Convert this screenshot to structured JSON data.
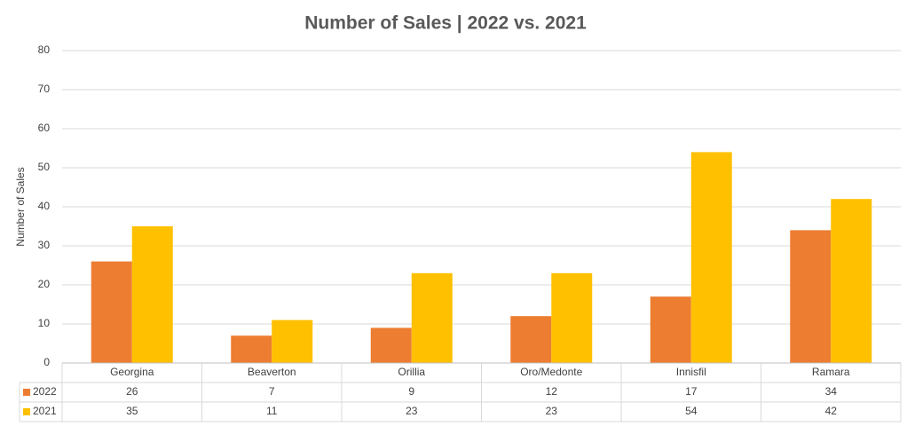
{
  "chart_data": {
    "type": "bar",
    "title": "Number of Sales | 2022 vs. 2021",
    "y_label": "Number of Sales",
    "categories": [
      "Georgina",
      "Beaverton",
      "Orillia",
      "Oro/Medonte",
      "Innisfil",
      "Ramara"
    ],
    "series": [
      {
        "name": "2022",
        "color": "#ed7d31",
        "values": [
          26,
          7,
          9,
          12,
          17,
          34
        ]
      },
      {
        "name": "2021",
        "color": "#ffc000",
        "values": [
          35,
          11,
          23,
          23,
          54,
          42
        ]
      }
    ],
    "ylim": [
      0,
      80
    ],
    "yticks": [
      0,
      10,
      20,
      30,
      40,
      50,
      60,
      70,
      80
    ],
    "grid": true,
    "data_table": true
  }
}
